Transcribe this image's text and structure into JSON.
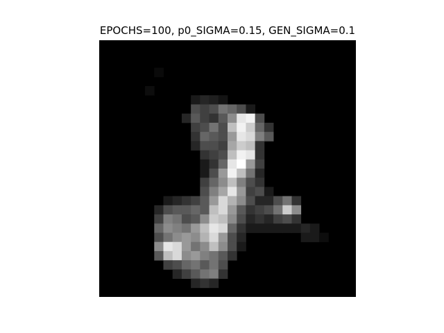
{
  "chart_data": {
    "type": "heatmap",
    "title": "EPOCHS=100, p0_SIGMA=0.15, GEN_SIGMA=0.1",
    "colormap": "gray",
    "vmin": 0,
    "vmax": 1,
    "rows": 28,
    "cols": 28,
    "axis": "off",
    "grid": false,
    "cells": [
      [
        5,
        5,
        0.05
      ],
      [
        3,
        6,
        0.04
      ],
      [
        6,
        10,
        0.1
      ],
      [
        6,
        11,
        0.15
      ],
      [
        6,
        12,
        0.12
      ],
      [
        6,
        13,
        0.08
      ],
      [
        7,
        10,
        0.3
      ],
      [
        7,
        11,
        0.25
      ],
      [
        7,
        12,
        0.3
      ],
      [
        7,
        13,
        0.45
      ],
      [
        7,
        14,
        0.4
      ],
      [
        7,
        15,
        0.3
      ],
      [
        7,
        16,
        0.1
      ],
      [
        8,
        9,
        0.15
      ],
      [
        8,
        10,
        0.35
      ],
      [
        8,
        11,
        0.25
      ],
      [
        8,
        12,
        0.2
      ],
      [
        8,
        13,
        0.35
      ],
      [
        8,
        14,
        0.55
      ],
      [
        8,
        15,
        0.9
      ],
      [
        8,
        16,
        0.95
      ],
      [
        8,
        17,
        0.3
      ],
      [
        9,
        10,
        0.25
      ],
      [
        9,
        11,
        0.3
      ],
      [
        9,
        12,
        0.45
      ],
      [
        9,
        13,
        0.3
      ],
      [
        9,
        14,
        0.75
      ],
      [
        9,
        15,
        0.95
      ],
      [
        9,
        16,
        0.8
      ],
      [
        9,
        17,
        0.4
      ],
      [
        9,
        18,
        0.2
      ],
      [
        10,
        10,
        0.2
      ],
      [
        10,
        11,
        0.4
      ],
      [
        10,
        12,
        0.35
      ],
      [
        10,
        13,
        0.3
      ],
      [
        10,
        14,
        0.6
      ],
      [
        10,
        15,
        0.9
      ],
      [
        10,
        16,
        0.85
      ],
      [
        10,
        17,
        0.5
      ],
      [
        10,
        18,
        0.35
      ],
      [
        11,
        10,
        0.15
      ],
      [
        11,
        11,
        0.3
      ],
      [
        11,
        12,
        0.3
      ],
      [
        11,
        13,
        0.25
      ],
      [
        11,
        14,
        0.65
      ],
      [
        11,
        15,
        0.8
      ],
      [
        11,
        16,
        0.75
      ],
      [
        11,
        17,
        0.2
      ],
      [
        12,
        11,
        0.2
      ],
      [
        12,
        12,
        0.25
      ],
      [
        12,
        13,
        0.3
      ],
      [
        12,
        14,
        0.75
      ],
      [
        12,
        15,
        0.95
      ],
      [
        12,
        16,
        0.9
      ],
      [
        12,
        17,
        0.2
      ],
      [
        13,
        11,
        0.1
      ],
      [
        13,
        12,
        0.2
      ],
      [
        13,
        13,
        0.4
      ],
      [
        13,
        14,
        0.9
      ],
      [
        13,
        15,
        1.0
      ],
      [
        13,
        16,
        0.6
      ],
      [
        13,
        17,
        0.25
      ],
      [
        14,
        11,
        0.1
      ],
      [
        14,
        12,
        0.3
      ],
      [
        14,
        13,
        0.6
      ],
      [
        14,
        14,
        0.95
      ],
      [
        14,
        15,
        0.75
      ],
      [
        14,
        16,
        0.45
      ],
      [
        14,
        17,
        0.15
      ],
      [
        15,
        11,
        0.25
      ],
      [
        15,
        12,
        0.4
      ],
      [
        15,
        13,
        0.55
      ],
      [
        15,
        14,
        0.75
      ],
      [
        15,
        15,
        0.5
      ],
      [
        15,
        16,
        0.3
      ],
      [
        15,
        17,
        0.2
      ],
      [
        16,
        11,
        0.3
      ],
      [
        16,
        12,
        0.5
      ],
      [
        16,
        13,
        0.65
      ],
      [
        16,
        14,
        0.9
      ],
      [
        16,
        15,
        0.6
      ],
      [
        16,
        16,
        0.25
      ],
      [
        16,
        17,
        0.3
      ],
      [
        16,
        18,
        0.1
      ],
      [
        17,
        7,
        0.1
      ],
      [
        17,
        8,
        0.15
      ],
      [
        17,
        9,
        0.2
      ],
      [
        17,
        10,
        0.25
      ],
      [
        17,
        11,
        0.35
      ],
      [
        17,
        12,
        0.6
      ],
      [
        17,
        13,
        0.85
      ],
      [
        17,
        14,
        0.7
      ],
      [
        17,
        15,
        0.55
      ],
      [
        17,
        16,
        0.3
      ],
      [
        17,
        17,
        0.15
      ],
      [
        17,
        18,
        0.15
      ],
      [
        17,
        19,
        0.3
      ],
      [
        17,
        20,
        0.45
      ],
      [
        17,
        21,
        0.2
      ],
      [
        18,
        6,
        0.15
      ],
      [
        18,
        7,
        0.3
      ],
      [
        18,
        8,
        0.35
      ],
      [
        18,
        9,
        0.35
      ],
      [
        18,
        10,
        0.4
      ],
      [
        18,
        11,
        0.35
      ],
      [
        18,
        12,
        0.75
      ],
      [
        18,
        13,
        0.85
      ],
      [
        18,
        14,
        0.6
      ],
      [
        18,
        15,
        0.35
      ],
      [
        18,
        16,
        0.2
      ],
      [
        18,
        17,
        0.25
      ],
      [
        18,
        18,
        0.3
      ],
      [
        18,
        19,
        0.45
      ],
      [
        18,
        20,
        0.8
      ],
      [
        18,
        21,
        0.55
      ],
      [
        19,
        6,
        0.25
      ],
      [
        19,
        7,
        0.5
      ],
      [
        19,
        8,
        0.45
      ],
      [
        19,
        9,
        0.3
      ],
      [
        19,
        10,
        0.35
      ],
      [
        19,
        11,
        0.55
      ],
      [
        19,
        12,
        0.8
      ],
      [
        19,
        13,
        0.75
      ],
      [
        19,
        14,
        0.55
      ],
      [
        19,
        15,
        0.3
      ],
      [
        19,
        16,
        0.15
      ],
      [
        19,
        17,
        0.2
      ],
      [
        19,
        18,
        0.15
      ],
      [
        19,
        19,
        0.25
      ],
      [
        19,
        20,
        0.3
      ],
      [
        19,
        21,
        0.2
      ],
      [
        20,
        6,
        0.4
      ],
      [
        20,
        7,
        0.55
      ],
      [
        20,
        8,
        0.5
      ],
      [
        20,
        9,
        0.45
      ],
      [
        20,
        10,
        0.6
      ],
      [
        20,
        11,
        0.75
      ],
      [
        20,
        12,
        0.9
      ],
      [
        20,
        13,
        0.85
      ],
      [
        20,
        14,
        0.4
      ],
      [
        20,
        15,
        0.2
      ],
      [
        20,
        16,
        0.1
      ],
      [
        20,
        17,
        0.1
      ],
      [
        20,
        18,
        0.1
      ],
      [
        20,
        19,
        0.1
      ],
      [
        20,
        20,
        0.1
      ],
      [
        20,
        21,
        0.1
      ],
      [
        20,
        22,
        0.15
      ],
      [
        20,
        23,
        0.1
      ],
      [
        21,
        6,
        0.3
      ],
      [
        21,
        7,
        0.45
      ],
      [
        21,
        8,
        0.55
      ],
      [
        21,
        9,
        0.6
      ],
      [
        21,
        10,
        0.55
      ],
      [
        21,
        11,
        0.7
      ],
      [
        21,
        12,
        0.85
      ],
      [
        21,
        13,
        0.6
      ],
      [
        21,
        14,
        0.3
      ],
      [
        21,
        15,
        0.15
      ],
      [
        21,
        22,
        0.1
      ],
      [
        21,
        23,
        0.1
      ],
      [
        21,
        24,
        0.05
      ],
      [
        22,
        6,
        0.55
      ],
      [
        22,
        7,
        0.9
      ],
      [
        22,
        8,
        0.85
      ],
      [
        22,
        9,
        0.6
      ],
      [
        22,
        10,
        0.45
      ],
      [
        22,
        11,
        0.55
      ],
      [
        22,
        12,
        0.75
      ],
      [
        22,
        13,
        0.55
      ],
      [
        22,
        14,
        0.3
      ],
      [
        22,
        15,
        0.1
      ],
      [
        23,
        6,
        0.35
      ],
      [
        23,
        7,
        0.75
      ],
      [
        23,
        8,
        0.85
      ],
      [
        23,
        9,
        0.55
      ],
      [
        23,
        10,
        0.6
      ],
      [
        23,
        11,
        0.5
      ],
      [
        23,
        12,
        0.45
      ],
      [
        23,
        13,
        0.35
      ],
      [
        23,
        14,
        0.2
      ],
      [
        24,
        7,
        0.25
      ],
      [
        24,
        8,
        0.3
      ],
      [
        24,
        9,
        0.4
      ],
      [
        24,
        10,
        0.45
      ],
      [
        24,
        11,
        0.35
      ],
      [
        24,
        12,
        0.45
      ],
      [
        24,
        13,
        0.3
      ],
      [
        25,
        8,
        0.15
      ],
      [
        25,
        9,
        0.25
      ],
      [
        25,
        10,
        0.35
      ],
      [
        25,
        11,
        0.45
      ],
      [
        25,
        12,
        0.5
      ],
      [
        25,
        13,
        0.2
      ],
      [
        26,
        10,
        0.15
      ],
      [
        26,
        11,
        0.2
      ],
      [
        26,
        12,
        0.15
      ]
    ]
  }
}
